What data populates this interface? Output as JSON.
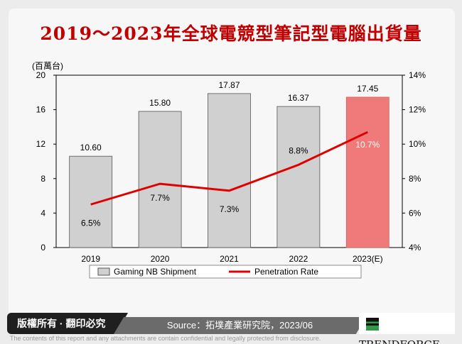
{
  "title": "2019～2023年全球電競型筆記型電腦出貨量",
  "footer": {
    "copyright": "版權所有 · 翻印必究",
    "source": "Source：拓墣產業研究院，2023/06",
    "brand": "TRENDFORCE",
    "disclaimer": "The contents of this report and any attachments are contain confidential and legally protected from disclosure."
  },
  "colors": {
    "bar": "#d0d0d0",
    "bar_highlight": "#f07a7a",
    "line": "#e00000",
    "title": "#c00000"
  },
  "chart_data": {
    "type": "bar+line",
    "title": "2019～2023年全球電競型筆記型電腦出貨量",
    "ylabel": "(百萬台)",
    "categories": [
      "2019",
      "2020",
      "2021",
      "2022",
      "2023(E)"
    ],
    "series": [
      {
        "name": "Gaming NB Shipment",
        "type": "bar",
        "axis": "left",
        "values": [
          10.6,
          15.8,
          17.87,
          16.37,
          17.45
        ],
        "labels": [
          "10.60",
          "15.80",
          "17.87",
          "16.37",
          "17.45"
        ]
      },
      {
        "name": "Penetration Rate",
        "type": "line",
        "axis": "right",
        "values": [
          6.5,
          7.7,
          7.3,
          8.8,
          10.7
        ],
        "labels": [
          "6.5%",
          "7.7%",
          "7.3%",
          "8.8%",
          "10.7%"
        ]
      }
    ],
    "ylim": [
      0,
      20
    ],
    "yticks": [
      "0",
      "4",
      "8",
      "12",
      "16",
      "20"
    ],
    "y2lim": [
      4,
      14
    ],
    "y2ticks": [
      "4%",
      "6%",
      "8%",
      "10%",
      "12%",
      "14%"
    ],
    "legend": "bottom",
    "grid": false
  }
}
